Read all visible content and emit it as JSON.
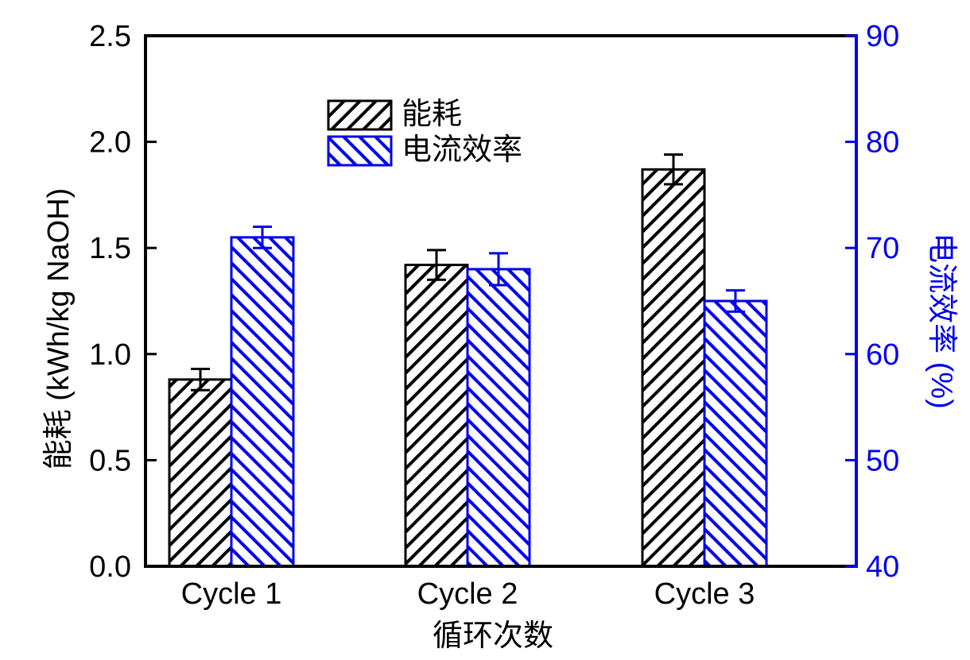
{
  "chart_data": {
    "type": "bar",
    "categories": [
      "Cycle 1",
      "Cycle 2",
      "Cycle 3"
    ],
    "series": [
      {
        "name": "能耗",
        "axis": "left",
        "color": "#000000",
        "hatch": "/",
        "values": [
          0.88,
          1.42,
          1.87
        ],
        "errors": [
          0.05,
          0.07,
          0.07
        ]
      },
      {
        "name": "电流效率",
        "axis": "right",
        "color": "#0000ee",
        "hatch": "\\",
        "values": [
          71,
          68,
          65
        ],
        "errors": [
          1,
          1.5,
          1
        ]
      }
    ],
    "xlabel": "循环次数",
    "ylabel_left": "能耗 (kWh/kg NaOH)",
    "ylabel_right": "电流效率 (%)",
    "ylim_left": [
      0,
      2.5
    ],
    "ytick_labels_left": [
      "0.0",
      "0.5",
      "1.0",
      "1.5",
      "2.0",
      "2.5"
    ],
    "ylim_right": [
      40,
      90
    ],
    "ytick_labels_right": [
      "40",
      "50",
      "60",
      "70",
      "80",
      "90"
    ],
    "legend": {
      "entries": [
        "能耗",
        "电流效率"
      ],
      "position": "inside-top-center-left"
    },
    "grid": false,
    "background": "#ffffff"
  }
}
